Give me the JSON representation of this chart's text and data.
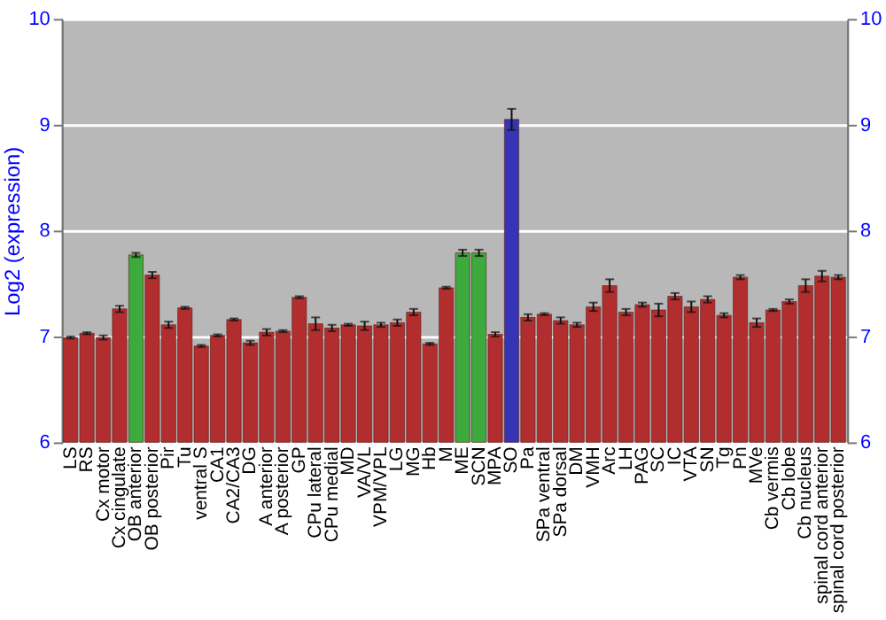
{
  "chart_data": {
    "type": "bar",
    "ylabel": "Log2 (expression)",
    "categories": [
      "LS",
      "RS",
      "Cx motor",
      "Cx cingulate",
      "OB anterior",
      "OB posterior",
      "Pir",
      "Tu",
      "ventral S",
      "CA1",
      "CA2/CA3",
      "DG",
      "A anterior",
      "A posterior",
      "GP",
      "CPu lateral",
      "CPu medial",
      "MD",
      "VA/VL",
      "VPM/VPL",
      "LG",
      "MG",
      "Hb",
      "M",
      "ME",
      "SCN",
      "MPA",
      "SO",
      "Pa",
      "SPa ventral",
      "SPa dorsal",
      "DM",
      "VMH",
      "Arc",
      "LH",
      "PAG",
      "SC",
      "IC",
      "VTA",
      "SN",
      "Tg",
      "Pn",
      "MVe",
      "Cb vermis",
      "Cb lobe",
      "Cb nucleus",
      "spinal cord anterior",
      "spinal cord posterior"
    ],
    "values": [
      6.99,
      7.03,
      6.99,
      7.26,
      7.77,
      7.58,
      7.11,
      7.27,
      6.91,
      7.01,
      7.16,
      6.94,
      7.04,
      7.05,
      7.37,
      7.12,
      7.08,
      7.11,
      7.1,
      7.11,
      7.13,
      7.23,
      6.93,
      7.46,
      7.79,
      7.79,
      7.02,
      9.05,
      7.18,
      7.21,
      7.15,
      7.11,
      7.28,
      7.48,
      7.23,
      7.3,
      7.25,
      7.38,
      7.28,
      7.35,
      7.2,
      7.56,
      7.13,
      7.25,
      7.33,
      7.48,
      7.57,
      7.56
    ],
    "errors": [
      0.01,
      0.01,
      0.02,
      0.03,
      0.02,
      0.03,
      0.03,
      0.01,
      0.01,
      0.01,
      0.01,
      0.02,
      0.03,
      0.01,
      0.01,
      0.06,
      0.03,
      0.01,
      0.04,
      0.02,
      0.03,
      0.03,
      0.01,
      0.01,
      0.03,
      0.03,
      0.02,
      0.1,
      0.03,
      0.01,
      0.03,
      0.02,
      0.04,
      0.06,
      0.03,
      0.02,
      0.06,
      0.03,
      0.05,
      0.03,
      0.02,
      0.02,
      0.04,
      0.01,
      0.02,
      0.06,
      0.05,
      0.02
    ],
    "colors": [
      "#b22e2e",
      "#b22e2e",
      "#b22e2e",
      "#b22e2e",
      "#3caa3c",
      "#b22e2e",
      "#b22e2e",
      "#b22e2e",
      "#b22e2e",
      "#b22e2e",
      "#b22e2e",
      "#b22e2e",
      "#b22e2e",
      "#b22e2e",
      "#b22e2e",
      "#b22e2e",
      "#b22e2e",
      "#b22e2e",
      "#b22e2e",
      "#b22e2e",
      "#b22e2e",
      "#b22e2e",
      "#b22e2e",
      "#b22e2e",
      "#3caa3c",
      "#3caa3c",
      "#b22e2e",
      "#3434b4",
      "#b22e2e",
      "#b22e2e",
      "#b22e2e",
      "#b22e2e",
      "#b22e2e",
      "#b22e2e",
      "#b22e2e",
      "#b22e2e",
      "#b22e2e",
      "#b22e2e",
      "#b22e2e",
      "#b22e2e",
      "#b22e2e",
      "#b22e2e",
      "#b22e2e",
      "#b22e2e",
      "#b22e2e",
      "#b22e2e",
      "#b22e2e",
      "#b22e2e"
    ],
    "ylim": [
      6,
      10
    ],
    "yticks": [
      6,
      7,
      8,
      9,
      10
    ],
    "y2lim": [
      6,
      10
    ],
    "y2ticks": [
      6,
      7,
      8,
      9,
      10
    ],
    "grid": "y"
  }
}
